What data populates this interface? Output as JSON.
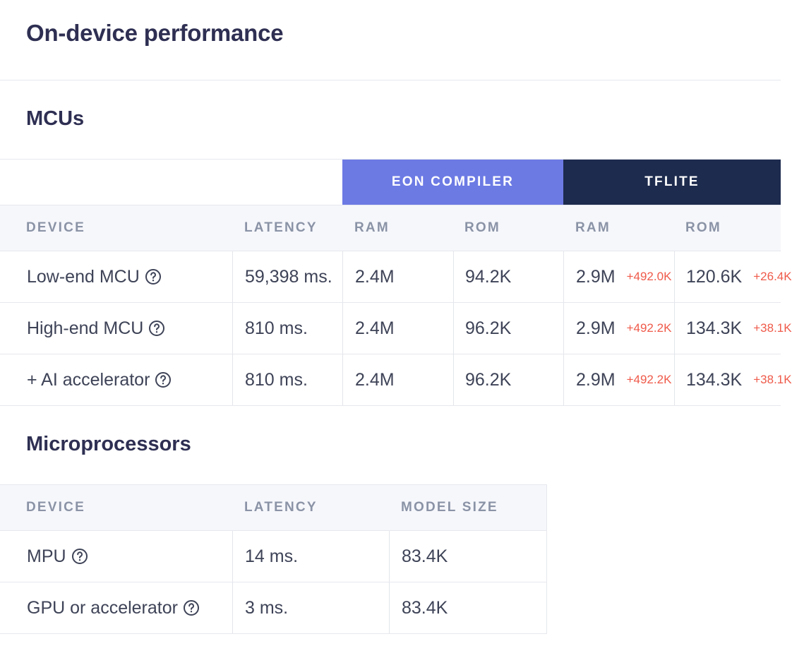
{
  "page_title": "On-device performance",
  "mcus": {
    "title": "MCUs",
    "group_headers": {
      "eon": "EON COMPILER",
      "tflite": "TFLITE"
    },
    "columns": [
      "DEVICE",
      "LATENCY",
      "RAM",
      "ROM",
      "RAM",
      "ROM"
    ],
    "rows": [
      {
        "device": "Low-end MCU",
        "latency": "59,398 ms.",
        "eon_ram": "2.4M",
        "eon_rom": "94.2K",
        "tflite_ram": "2.9M",
        "tflite_ram_delta": "+492.0K",
        "tflite_rom": "120.6K",
        "tflite_rom_delta": "+26.4K"
      },
      {
        "device": "High-end MCU",
        "latency": "810 ms.",
        "eon_ram": "2.4M",
        "eon_rom": "96.2K",
        "tflite_ram": "2.9M",
        "tflite_ram_delta": "+492.2K",
        "tflite_rom": "134.3K",
        "tflite_rom_delta": "+38.1K"
      },
      {
        "device": "+ AI accelerator",
        "latency": "810 ms.",
        "eon_ram": "2.4M",
        "eon_rom": "96.2K",
        "tflite_ram": "2.9M",
        "tflite_ram_delta": "+492.2K",
        "tflite_rom": "134.3K",
        "tflite_rom_delta": "+38.1K"
      }
    ]
  },
  "microprocessors": {
    "title": "Microprocessors",
    "columns": [
      "DEVICE",
      "LATENCY",
      "MODEL SIZE"
    ],
    "rows": [
      {
        "device": "MPU",
        "latency": "14 ms.",
        "model_size": "83.4K"
      },
      {
        "device": "GPU or accelerator",
        "latency": "3 ms.",
        "model_size": "83.4K"
      }
    ]
  },
  "icons": {
    "help": "question-circle-icon"
  },
  "colors": {
    "eon_header": "#6c7ae4",
    "tflite_header": "#1d2b4e",
    "delta": "#ef5a4a"
  }
}
